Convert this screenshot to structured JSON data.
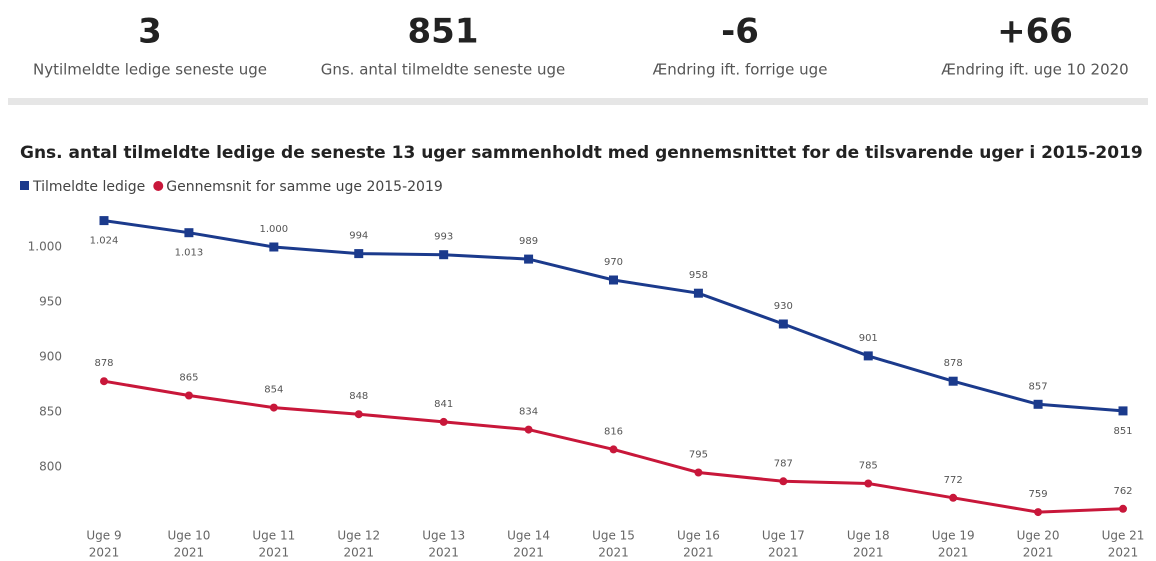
{
  "kpis": [
    {
      "value": "3",
      "label": "Nytilmeldte ledige seneste uge"
    },
    {
      "value": "851",
      "label": "Gns. antal tilmeldte seneste uge"
    },
    {
      "value": "-6",
      "label": "Ændring ift. forrige uge"
    },
    {
      "value": "+66",
      "label": "Ændring ift. uge 10 2020"
    }
  ],
  "chart_data": {
    "type": "line",
    "title": "Gns. antal tilmeldte ledige de seneste 13 uger sammenholdt med gennemsnittet for de tilsvarende uger i 2015-2019",
    "categories": [
      [
        "Uge 9",
        "2021"
      ],
      [
        "Uge 10",
        "2021"
      ],
      [
        "Uge 11",
        "2021"
      ],
      [
        "Uge 12",
        "2021"
      ],
      [
        "Uge 13",
        "2021"
      ],
      [
        "Uge 14",
        "2021"
      ],
      [
        "Uge 15",
        "2021"
      ],
      [
        "Uge 16",
        "2021"
      ],
      [
        "Uge 17",
        "2021"
      ],
      [
        "Uge 18",
        "2021"
      ],
      [
        "Uge 19",
        "2021"
      ],
      [
        "Uge 20",
        "2021"
      ],
      [
        "Uge 21",
        "2021"
      ]
    ],
    "series": [
      {
        "name": "Tilmeldte ledige",
        "color": "#1b3a8c",
        "marker": "square",
        "values": [
          1024,
          1013,
          1000,
          994,
          993,
          989,
          970,
          958,
          930,
          901,
          878,
          857,
          851
        ],
        "value_labels": [
          "1.024",
          "1.013",
          "1.000",
          "994",
          "993",
          "989",
          "970",
          "958",
          "930",
          "901",
          "878",
          "857",
          "851"
        ]
      },
      {
        "name": "Gennemsnit for samme uge 2015-2019",
        "color": "#c8173a",
        "marker": "circle",
        "values": [
          878,
          865,
          854,
          848,
          841,
          834,
          816,
          795,
          787,
          785,
          772,
          759,
          762
        ]
      }
    ],
    "ylim": [
      750,
      1030
    ],
    "yticks": [
      800,
      850,
      900,
      950,
      {
        "value": 1000,
        "label": "1.000"
      }
    ],
    "grid": false,
    "legend": "top-left"
  }
}
